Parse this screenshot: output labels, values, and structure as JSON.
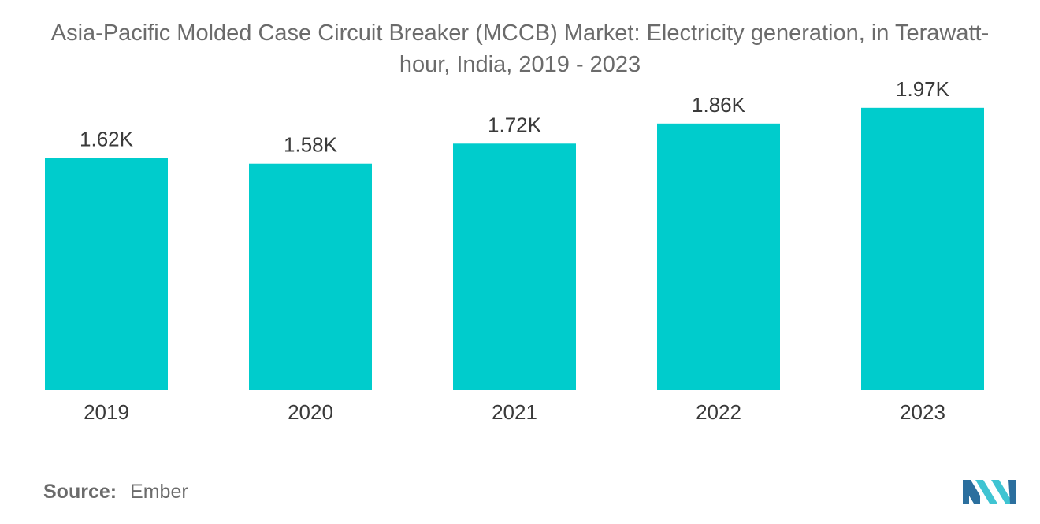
{
  "title": "Asia-Pacific Molded Case Circuit Breaker (MCCB) Market: Electricity generation, in Terawatt-hour, India, 2019 - 2023",
  "source": {
    "label": "Source:",
    "value": "Ember"
  },
  "logo": {
    "icon": "mordor-intelligence-logo"
  },
  "colors": {
    "bar": "#00cccc",
    "logo_dark": "#2b6f9e",
    "logo_light": "#3fc4d2"
  },
  "chart_data": {
    "type": "bar",
    "title": "Asia-Pacific Molded Case Circuit Breaker (MCCB) Market: Electricity generation, in Terawatt-hour, India, 2019 - 2023",
    "categories": [
      "2019",
      "2020",
      "2021",
      "2022",
      "2023"
    ],
    "values": [
      1620,
      1580,
      1720,
      1860,
      1970
    ],
    "data_labels": [
      "1.62K",
      "1.58K",
      "1.72K",
      "1.86K",
      "1.97K"
    ],
    "xlabel": "",
    "ylabel": "",
    "ylim": [
      0,
      2200
    ],
    "grid": false,
    "legend": "none"
  }
}
